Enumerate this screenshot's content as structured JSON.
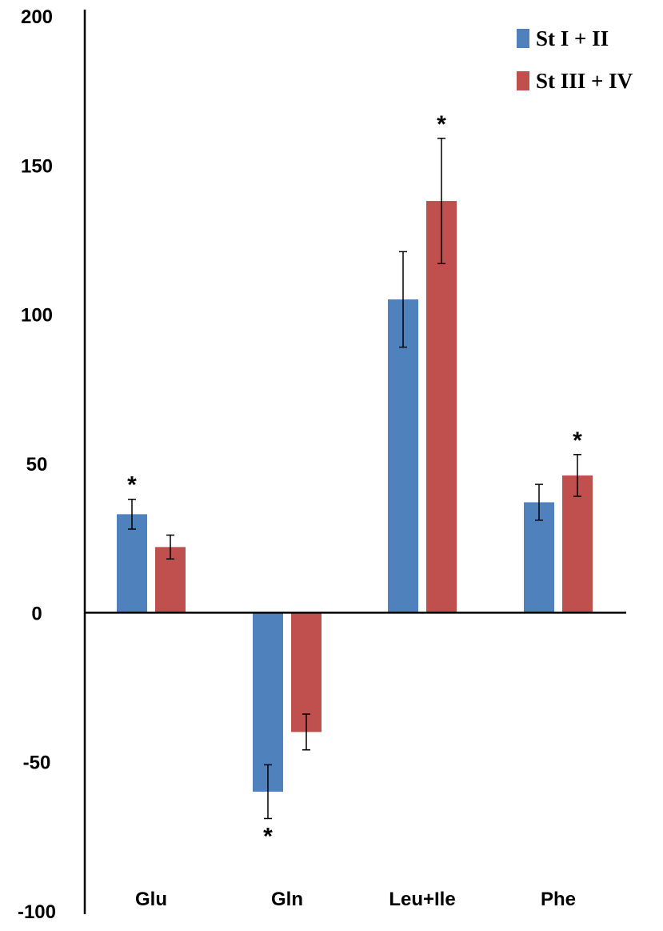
{
  "chart_data": {
    "type": "bar",
    "title": "",
    "xlabel": "",
    "ylabel": "",
    "ylim": [
      -100,
      200
    ],
    "yticks": [
      -100,
      -50,
      0,
      50,
      100,
      150,
      200
    ],
    "ytick_labels": [
      "-100",
      "-50",
      "0",
      "50",
      "100",
      "150",
      "200"
    ],
    "categories": [
      "Glu",
      "Gln",
      "Leu+Ile",
      "Phe"
    ],
    "series": [
      {
        "name": "St I + II",
        "color": "#4f81bd",
        "values": [
          33,
          -60,
          105,
          37
        ],
        "error": [
          5,
          9,
          16,
          6
        ],
        "significant": [
          true,
          true,
          false,
          false
        ]
      },
      {
        "name": "St III + IV",
        "color": "#c0504d",
        "values": [
          22,
          -40,
          138,
          46
        ],
        "error": [
          4,
          6,
          21,
          7
        ],
        "significant": [
          false,
          false,
          true,
          true
        ]
      }
    ],
    "significance_marker": "*",
    "legend_position": "top-right",
    "grid": false
  }
}
